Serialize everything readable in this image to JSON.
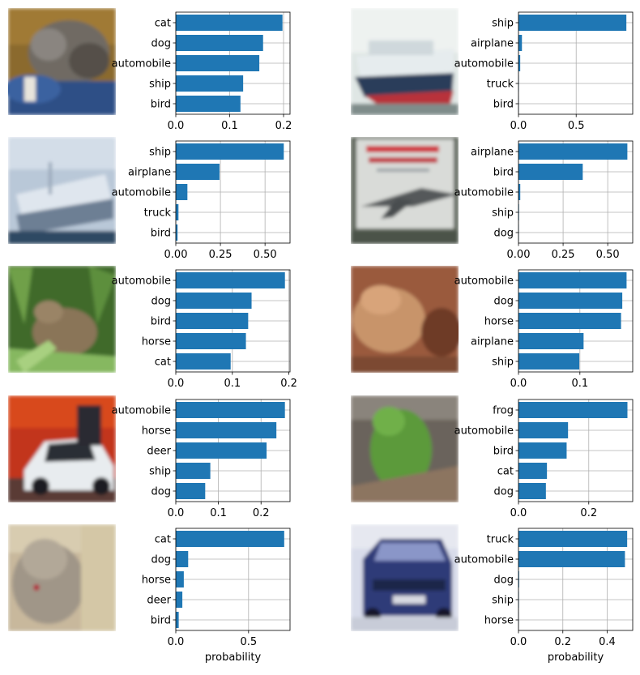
{
  "chart_data": [
    {
      "type": "bar",
      "orientation": "horizontal",
      "image": "cat-photo",
      "categories": [
        "cat",
        "dog",
        "automobile",
        "ship",
        "bird"
      ],
      "values": [
        0.198,
        0.162,
        0.155,
        0.125,
        0.12
      ],
      "xticks": [
        0.0,
        0.1,
        0.2
      ],
      "xtick_labels": [
        "0.0",
        "0.1",
        "0.2"
      ],
      "xlim": [
        0,
        0.212
      ],
      "grid": true,
      "xlabel": ""
    },
    {
      "type": "bar",
      "orientation": "horizontal",
      "image": "ship-photo",
      "categories": [
        "ship",
        "airplane",
        "automobile",
        "truck",
        "bird"
      ],
      "values": [
        0.935,
        0.03,
        0.015,
        0.003,
        0.002
      ],
      "xticks": [
        0.0,
        0.5
      ],
      "xtick_labels": [
        "0.0",
        "0.5"
      ],
      "xlim": [
        0,
        0.99
      ],
      "grid": true,
      "xlabel": ""
    },
    {
      "type": "bar",
      "orientation": "horizontal",
      "image": "boat-photo",
      "categories": [
        "ship",
        "airplane",
        "automobile",
        "truck",
        "bird"
      ],
      "values": [
        0.605,
        0.245,
        0.065,
        0.015,
        0.01
      ],
      "xticks": [
        0.0,
        0.25,
        0.5
      ],
      "xtick_labels": [
        "0.00",
        "0.25",
        "0.50"
      ],
      "xlim": [
        0,
        0.64
      ],
      "grid": true,
      "xlabel": ""
    },
    {
      "type": "bar",
      "orientation": "horizontal",
      "image": "airplane-photo",
      "categories": [
        "airplane",
        "bird",
        "automobile",
        "ship",
        "dog"
      ],
      "values": [
        0.61,
        0.36,
        0.01,
        0.003,
        0.002
      ],
      "xticks": [
        0.0,
        0.25,
        0.5
      ],
      "xtick_labels": [
        "0.00",
        "0.25",
        "0.50"
      ],
      "xlim": [
        0,
        0.64
      ],
      "grid": true,
      "xlabel": ""
    },
    {
      "type": "bar",
      "orientation": "horizontal",
      "image": "frog-photo",
      "categories": [
        "automobile",
        "dog",
        "bird",
        "horse",
        "cat"
      ],
      "values": [
        0.193,
        0.134,
        0.128,
        0.124,
        0.097
      ],
      "xticks": [
        0.0,
        0.1,
        0.2
      ],
      "xtick_labels": [
        "0.0",
        "0.1",
        "0.2"
      ],
      "xlim": [
        0,
        0.202
      ],
      "grid": true,
      "xlabel": ""
    },
    {
      "type": "bar",
      "orientation": "horizontal",
      "image": "toad-photo",
      "categories": [
        "automobile",
        "dog",
        "horse",
        "airplane",
        "ship"
      ],
      "values": [
        0.176,
        0.169,
        0.167,
        0.106,
        0.099
      ],
      "xticks": [
        0.0,
        0.1
      ],
      "xtick_labels": [
        "0.0",
        "0.1"
      ],
      "xlim": [
        0,
        0.186
      ],
      "grid": true,
      "xlabel": ""
    },
    {
      "type": "bar",
      "orientation": "horizontal",
      "image": "car-photo",
      "categories": [
        "automobile",
        "horse",
        "deer",
        "ship",
        "dog"
      ],
      "values": [
        0.256,
        0.236,
        0.213,
        0.081,
        0.069
      ],
      "xticks": [
        0.0,
        0.1,
        0.2
      ],
      "xtick_labels": [
        "0.0",
        "0.1",
        "0.2"
      ],
      "xlim": [
        0,
        0.268
      ],
      "grid": true,
      "xlabel": ""
    },
    {
      "type": "bar",
      "orientation": "horizontal",
      "image": "treefrog-photo",
      "categories": [
        "frog",
        "automobile",
        "bird",
        "cat",
        "dog"
      ],
      "values": [
        0.31,
        0.141,
        0.137,
        0.081,
        0.078
      ],
      "xticks": [
        0.0,
        0.2
      ],
      "xtick_labels": [
        "0.0",
        "0.2"
      ],
      "xlim": [
        0,
        0.325
      ],
      "grid": true,
      "xlabel": ""
    },
    {
      "type": "bar",
      "orientation": "horizontal",
      "image": "cat2-photo",
      "categories": [
        "cat",
        "dog",
        "horse",
        "deer",
        "bird"
      ],
      "values": [
        0.745,
        0.085,
        0.055,
        0.045,
        0.02
      ],
      "xticks": [
        0.0,
        0.5
      ],
      "xtick_labels": [
        "0.0",
        "0.5"
      ],
      "xlim": [
        0,
        0.785
      ],
      "grid": true,
      "xlabel": "probability"
    },
    {
      "type": "bar",
      "orientation": "horizontal",
      "image": "truck-photo",
      "categories": [
        "truck",
        "automobile",
        "dog",
        "ship",
        "horse"
      ],
      "values": [
        0.49,
        0.48,
        0.003,
        0.002,
        0.001
      ],
      "xticks": [
        0.0,
        0.2,
        0.4
      ],
      "xtick_labels": [
        "0.0",
        "0.2",
        "0.4"
      ],
      "xlim": [
        0,
        0.515
      ],
      "grid": true,
      "xlabel": "probability"
    }
  ],
  "colors": {
    "bar": "#1f77b4",
    "grid": "#b0b0b0",
    "axis": "#000000"
  }
}
